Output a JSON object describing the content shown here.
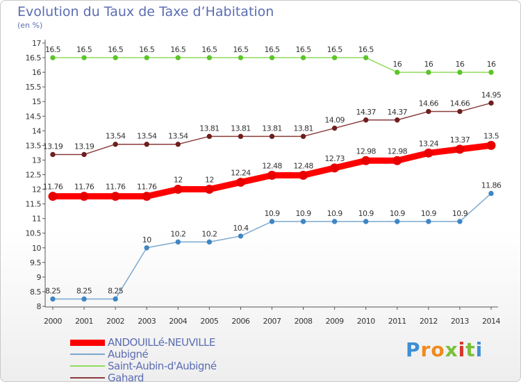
{
  "header": {
    "title": "Evolution du Taux de Taxe d’Habitation",
    "unit": "(en %)"
  },
  "brand": {
    "text": "Proxiti",
    "letters": [
      "P",
      "r",
      "o",
      "x",
      "i",
      "t",
      "i"
    ],
    "colors": [
      "#3d8fd6",
      "#f08a1c",
      "#f08a1c",
      "#7bbf3a",
      "#d9342b",
      "#7bbf3a",
      "#3d8fd6"
    ]
  },
  "chart_data": {
    "type": "line",
    "title": "Evolution du Taux de Taxe d’Habitation",
    "ylabel": "(en %)",
    "xlabel": "",
    "ylim": [
      8,
      17
    ],
    "ytick_step": 0.5,
    "grid": false,
    "legend_position": "bottom-left",
    "x": [
      "2000",
      "2001",
      "2002",
      "2003",
      "2004",
      "2005",
      "2006",
      "2007",
      "2008",
      "2009",
      "2010",
      "2011",
      "2012",
      "2013",
      "2014"
    ],
    "y_ticks": [
      "8",
      "8.5",
      "9",
      "9.5",
      "10",
      "10.5",
      "11",
      "11.5",
      "12",
      "12.5",
      "13",
      "13.5",
      "14",
      "14.5",
      "15",
      "15.5",
      "16",
      "16.5",
      "17"
    ],
    "series": [
      {
        "name": "ANDOUILLé-NEUVILLE",
        "color": "#ff0000",
        "marker_color": "#e80000",
        "values": [
          11.76,
          11.76,
          11.76,
          11.76,
          12,
          12,
          12.24,
          12.48,
          12.48,
          12.73,
          12.98,
          12.98,
          13.24,
          13.37,
          13.5
        ],
        "labels": [
          "11.76",
          "11.76",
          "11.76",
          "11.76",
          "12",
          "12",
          "12.24",
          "12.48",
          "12.48",
          "12.73",
          "12.98",
          "12.98",
          "13.24",
          "13.37",
          "13.5"
        ]
      },
      {
        "name": "Aubigné",
        "color": "#7ba7cf",
        "marker_color": "#3f86c4",
        "values": [
          8.25,
          8.25,
          8.25,
          10,
          10.2,
          10.2,
          10.4,
          10.9,
          10.9,
          10.9,
          10.9,
          10.9,
          10.9,
          10.9,
          11.86
        ],
        "labels": [
          "8.25",
          "8.25",
          "8.25",
          "10",
          "10.2",
          "10.2",
          "10.4",
          "10.9",
          "10.9",
          "10.9",
          "10.9",
          "10.9",
          "10.9",
          "10.9",
          "11.86"
        ]
      },
      {
        "name": "Saint-Aubin-d'Aubigné",
        "color": "#8fdc5a",
        "marker_color": "#5dc42a",
        "values": [
          16.5,
          16.5,
          16.5,
          16.5,
          16.5,
          16.5,
          16.5,
          16.5,
          16.5,
          16.5,
          16.5,
          16,
          16,
          16,
          16
        ],
        "labels": [
          "16.5",
          "16.5",
          "16.5",
          "16.5",
          "16.5",
          "16.5",
          "16.5",
          "16.5",
          "16.5",
          "16.5",
          "16.5",
          "16",
          "16",
          "16",
          "16"
        ]
      },
      {
        "name": "Gahard",
        "color": "#8a3a3a",
        "marker_color": "#6e1f1f",
        "values": [
          13.19,
          13.19,
          13.54,
          13.54,
          13.54,
          13.81,
          13.81,
          13.81,
          13.81,
          14.09,
          14.37,
          14.37,
          14.66,
          14.66,
          14.95
        ],
        "labels": [
          "13.19",
          "13.19",
          "13.54",
          "13.54",
          "13.54",
          "13.81",
          "13.81",
          "13.81",
          "13.81",
          "14.09",
          "14.37",
          "14.37",
          "14.66",
          "14.66",
          "14.95"
        ]
      }
    ]
  }
}
